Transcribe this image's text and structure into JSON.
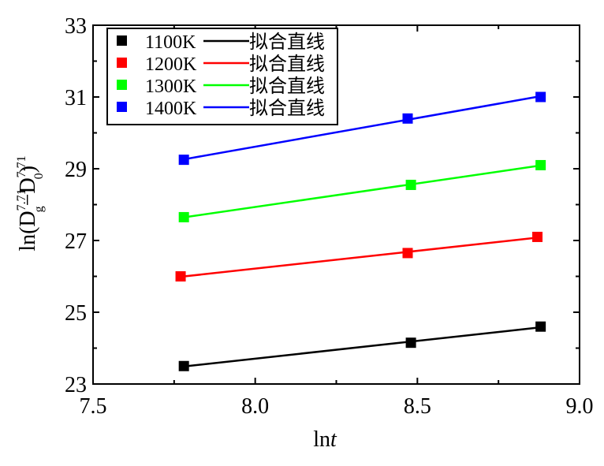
{
  "chart_data": {
    "type": "scatter",
    "title": "",
    "xlabel": "ln",
    "xlabel_italic": "t",
    "ylabel": {
      "prefix": "ln(D",
      "sup1": "7.71",
      "sub1": "g",
      "minus": "−D",
      "sup2": "7.71",
      "sub2": "0",
      "suffix": ")"
    },
    "xlim": [
      7.5,
      9.0
    ],
    "ylim": [
      23,
      33
    ],
    "xticks": [
      "7.5",
      "8.0",
      "8.5",
      "9.0"
    ],
    "xtick_values": [
      7.5,
      8.0,
      8.5,
      9.0
    ],
    "yticks": [
      "23",
      "25",
      "27",
      "29",
      "31",
      "33"
    ],
    "ytick_values": [
      23,
      25,
      27,
      29,
      31,
      33
    ],
    "grid": false,
    "legend_position": "top-left",
    "fit_label": "拟合直线",
    "series": [
      {
        "name": "1100K",
        "color": "#000000",
        "x": [
          7.78,
          8.48,
          8.88
        ],
        "y": [
          23.5,
          24.15,
          24.6
        ]
      },
      {
        "name": "1200K",
        "color": "#ff0000",
        "x": [
          7.77,
          8.47,
          8.87
        ],
        "y": [
          26.0,
          26.65,
          27.1
        ]
      },
      {
        "name": "1300K",
        "color": "#00ff00",
        "x": [
          7.78,
          8.48,
          8.88
        ],
        "y": [
          27.65,
          28.55,
          29.1
        ]
      },
      {
        "name": "1400K",
        "color": "#0000ff",
        "x": [
          7.78,
          8.47,
          8.88
        ],
        "y": [
          29.25,
          30.4,
          31.0
        ]
      }
    ]
  }
}
